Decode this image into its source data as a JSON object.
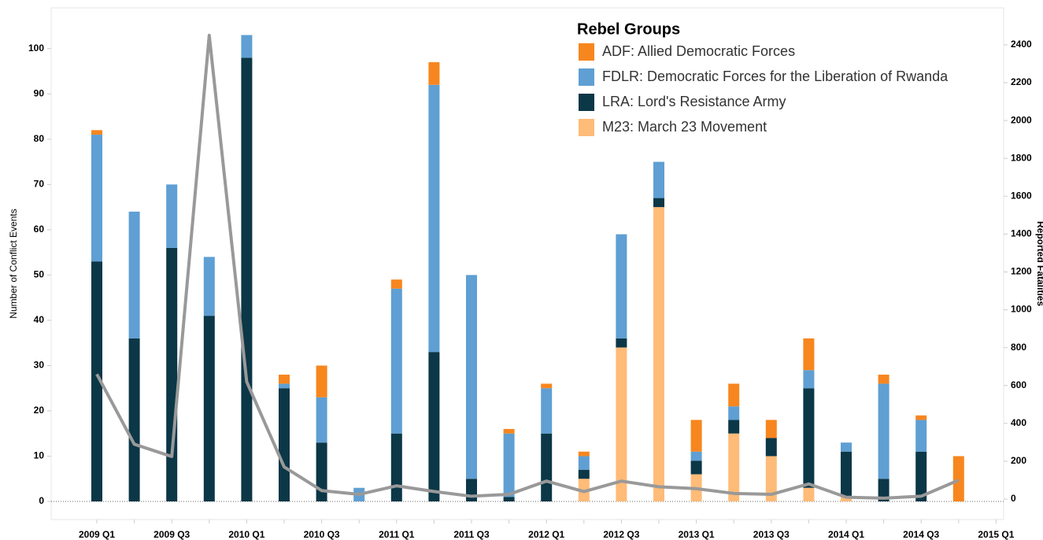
{
  "chart_data": {
    "type": "bar",
    "stacked": true,
    "legend_title": "Rebel Groups",
    "legend_position": "top-right",
    "ylabel": "Number of Conflict Events",
    "y2label": "Reported Fatalities",
    "categories": [
      "2009 Q1",
      null,
      "2009 Q3",
      null,
      "2010 Q1",
      null,
      "2010 Q3",
      null,
      "2011 Q1",
      null,
      "2011 Q3",
      null,
      "2012 Q1",
      null,
      "2012 Q3",
      null,
      "2013 Q1",
      null,
      "2013 Q3",
      null,
      "2014 Q1",
      null,
      "2014 Q3",
      null,
      "2015 Q1"
    ],
    "series": [
      {
        "name": "ADF: Allied Democratic Forces",
        "color": "#f7861e",
        "values": [
          1,
          null,
          null,
          null,
          null,
          2,
          7,
          null,
          2,
          5,
          null,
          1,
          1,
          1,
          null,
          null,
          7,
          5,
          4,
          7,
          null,
          2,
          1,
          10,
          null
        ]
      },
      {
        "name": "FDLR: Democratic Forces for the Liberation of Rwanda",
        "color": "#5f9fd3",
        "values": [
          28,
          28,
          14,
          13,
          5,
          1,
          10,
          3,
          32,
          59,
          45,
          14,
          10,
          3,
          23,
          8,
          2,
          3,
          null,
          4,
          2,
          21,
          7,
          null,
          null
        ]
      },
      {
        "name": "LRA: Lord's Resistance Army",
        "color": "#0b3747",
        "values": [
          53,
          36,
          56,
          41,
          98,
          25,
          13,
          null,
          15,
          33,
          5,
          1,
          15,
          2,
          2,
          2,
          3,
          3,
          4,
          22,
          10,
          5,
          11,
          null,
          null
        ]
      },
      {
        "name": "M23: March 23 Movement",
        "color": "#ffbb78",
        "values": [
          null,
          null,
          null,
          null,
          null,
          null,
          null,
          null,
          null,
          null,
          null,
          null,
          null,
          5,
          34,
          65,
          6,
          15,
          10,
          3,
          1,
          null,
          null,
          null,
          null
        ]
      }
    ],
    "line_series": {
      "color": "#999999",
      "axis": "y2",
      "values": [
        660,
        290,
        225,
        2450,
        620,
        170,
        45,
        25,
        70,
        40,
        15,
        25,
        95,
        40,
        95,
        65,
        55,
        30,
        25,
        80,
        10,
        5,
        15,
        100,
        null
      ]
    },
    "ylim": [
      -4,
      109
    ],
    "yticks": [
      0,
      10,
      20,
      30,
      40,
      50,
      60,
      70,
      80,
      90,
      100
    ],
    "y2lim": [
      -108,
      2595
    ],
    "y2ticks": [
      0,
      200,
      400,
      600,
      800,
      1000,
      1200,
      1400,
      1600,
      1800,
      2000,
      2200,
      2400
    ]
  }
}
